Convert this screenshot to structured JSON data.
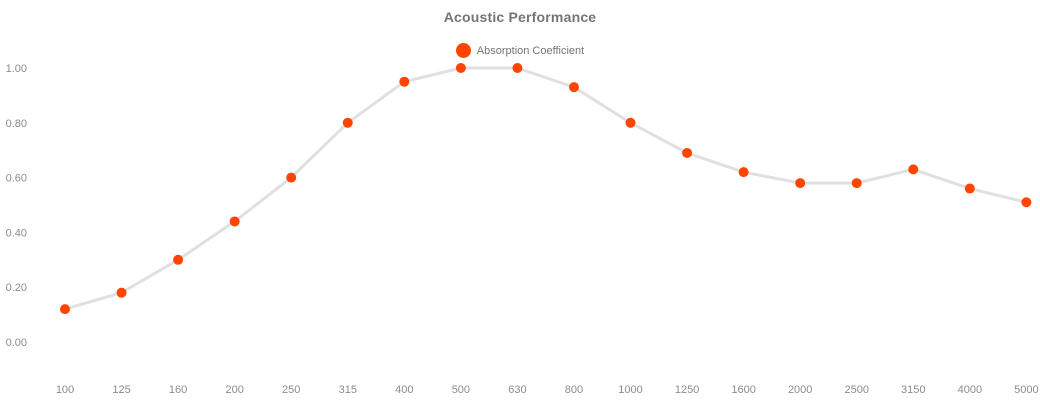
{
  "chart": {
    "title": "Acoustic Performance",
    "legend": {
      "label": "Absorption Coefficient"
    },
    "colors": {
      "marker": "#ff4500",
      "line": "#e0e0e0",
      "title_text": "#757575",
      "tick_text": "#8c8c8c",
      "background": "#ffffff"
    }
  },
  "chart_data": {
    "type": "line",
    "title": "Acoustic Performance",
    "categories": [
      "100",
      "125",
      "160",
      "200",
      "250",
      "315",
      "400",
      "500",
      "630",
      "800",
      "1000",
      "1250",
      "1600",
      "2000",
      "2500",
      "3150",
      "4000",
      "5000"
    ],
    "series": [
      {
        "name": "Absorption Coefficient",
        "values": [
          0.12,
          0.18,
          0.3,
          0.44,
          0.6,
          0.8,
          0.95,
          1.0,
          1.0,
          0.93,
          0.8,
          0.69,
          0.62,
          0.58,
          0.58,
          0.63,
          0.56,
          0.51
        ]
      }
    ],
    "yticks": [
      "0.00",
      "0.20",
      "0.40",
      "0.60",
      "0.80",
      "1.00"
    ],
    "ytick_values": [
      0.0,
      0.2,
      0.4,
      0.6,
      0.8,
      1.0
    ],
    "xlabel": "",
    "ylabel": "",
    "ylim": [
      0.0,
      1.0
    ],
    "grid": false,
    "legend_position": "top-center",
    "marker_shape": "circle"
  }
}
